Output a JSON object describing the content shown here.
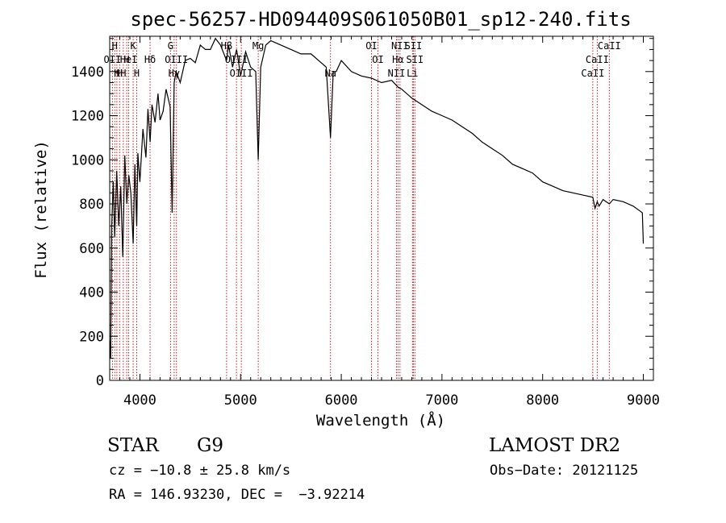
{
  "chart_data": {
    "type": "line",
    "title": "spec-56257-HD094409S061050B01_sp12-240.fits",
    "xlabel": "Wavelength (Å)",
    "ylabel": "Flux (relative)",
    "xlim": [
      3700,
      9100
    ],
    "ylim": [
      0,
      1560
    ],
    "xticks": [
      4000,
      5000,
      6000,
      7000,
      8000,
      9000
    ],
    "yticks": [
      0,
      200,
      400,
      600,
      800,
      1000,
      1200,
      1400
    ],
    "series": [
      {
        "x": [
          3700,
          3710,
          3720,
          3735,
          3750,
          3770,
          3790,
          3810,
          3830,
          3850,
          3870,
          3890,
          3910,
          3933,
          3950,
          3968,
          3980,
          4000,
          4030,
          4060,
          4080,
          4101,
          4120,
          4150,
          4180,
          4200,
          4230,
          4260,
          4300,
          4320,
          4340,
          4360,
          4400,
          4450,
          4500,
          4550,
          4600,
          4650,
          4700,
          4750,
          4800,
          4861,
          4880,
          4920,
          4960,
          5000,
          5050,
          5100,
          5150,
          5175,
          5200,
          5250,
          5300,
          5400,
          5500,
          5600,
          5700,
          5800,
          5850,
          5893,
          5920,
          5950,
          6000,
          6100,
          6200,
          6300,
          6400,
          6500,
          6563,
          6600,
          6700,
          6800,
          6900,
          7000,
          7100,
          7200,
          7300,
          7400,
          7500,
          7600,
          7700,
          7800,
          7900,
          8000,
          8100,
          8200,
          8300,
          8400,
          8498,
          8520,
          8542,
          8560,
          8600,
          8662,
          8700,
          8800,
          8900,
          8960,
          8990,
          9000
        ],
        "values": [
          180,
          100,
          700,
          900,
          650,
          950,
          700,
          880,
          560,
          1020,
          800,
          930,
          850,
          620,
          980,
          700,
          1030,
          900,
          1140,
          1010,
          1230,
          1080,
          1250,
          1170,
          1300,
          1180,
          1220,
          1320,
          1240,
          760,
          1350,
          1400,
          1350,
          1450,
          1460,
          1440,
          1520,
          1500,
          1500,
          1550,
          1520,
          1450,
          1520,
          1420,
          1500,
          1380,
          1490,
          1420,
          1400,
          1000,
          1420,
          1520,
          1540,
          1520,
          1500,
          1480,
          1480,
          1440,
          1420,
          1100,
          1400,
          1400,
          1450,
          1400,
          1380,
          1370,
          1350,
          1360,
          1330,
          1320,
          1280,
          1250,
          1220,
          1200,
          1180,
          1150,
          1120,
          1080,
          1050,
          1020,
          980,
          960,
          940,
          900,
          880,
          860,
          850,
          840,
          830,
          780,
          810,
          790,
          820,
          800,
          820,
          810,
          790,
          770,
          760,
          620
        ]
      }
    ],
    "lines": [
      {
        "x": 3727,
        "label": "OII",
        "tier": 2
      },
      {
        "x": 3750,
        "label": "H",
        "tier": 1
      },
      {
        "x": 3771,
        "label": "H",
        "tier": 3
      },
      {
        "x": 3798,
        "label": "H",
        "tier": 3
      },
      {
        "x": 3835,
        "label": "H",
        "tier": 3
      },
      {
        "x": 3869,
        "label": "H",
        "tier": 2
      },
      {
        "x": 3889,
        "label": "HeI",
        "tier": 2
      },
      {
        "x": 3933,
        "label": "K",
        "tier": 1
      },
      {
        "x": 3968,
        "label": "H",
        "tier": 3
      },
      {
        "x": 4101,
        "label": "Hδ",
        "tier": 2
      },
      {
        "x": 4304,
        "label": "G",
        "tier": 1
      },
      {
        "x": 4340,
        "label": "Hγ",
        "tier": 3
      },
      {
        "x": 4363,
        "label": "OIII",
        "tier": 2
      },
      {
        "x": 4861,
        "label": "Hβ",
        "tier": 1
      },
      {
        "x": 4959,
        "label": "OIII",
        "tier": 2
      },
      {
        "x": 5007,
        "label": "OIII",
        "tier": 3
      },
      {
        "x": 5175,
        "label": "Mg",
        "tier": 1
      },
      {
        "x": 5893,
        "label": "Na",
        "tier": 3
      },
      {
        "x": 6300,
        "label": "OI",
        "tier": 1
      },
      {
        "x": 6364,
        "label": "OI",
        "tier": 2
      },
      {
        "x": 6548,
        "label": "NII",
        "tier": 3
      },
      {
        "x": 6563,
        "label": "Hα",
        "tier": 2
      },
      {
        "x": 6583,
        "label": "NII",
        "tier": 1
      },
      {
        "x": 6707,
        "label": "Li",
        "tier": 3
      },
      {
        "x": 6716,
        "label": "SII",
        "tier": 1
      },
      {
        "x": 6731,
        "label": "SII",
        "tier": 2
      },
      {
        "x": 8498,
        "label": "CaII",
        "tier": 3
      },
      {
        "x": 8542,
        "label": "CaII",
        "tier": 2
      },
      {
        "x": 8662,
        "label": "CaII",
        "tier": 1
      }
    ]
  },
  "info": {
    "object_class": "STAR",
    "subclass": "G9",
    "survey": "LAMOST DR2",
    "cz": "cz = −10.8 ± 25.8 km/s",
    "obs_date": "Obs−Date: 20121125",
    "radec": "RA = 146.93230, DEC =  −3.92214"
  }
}
